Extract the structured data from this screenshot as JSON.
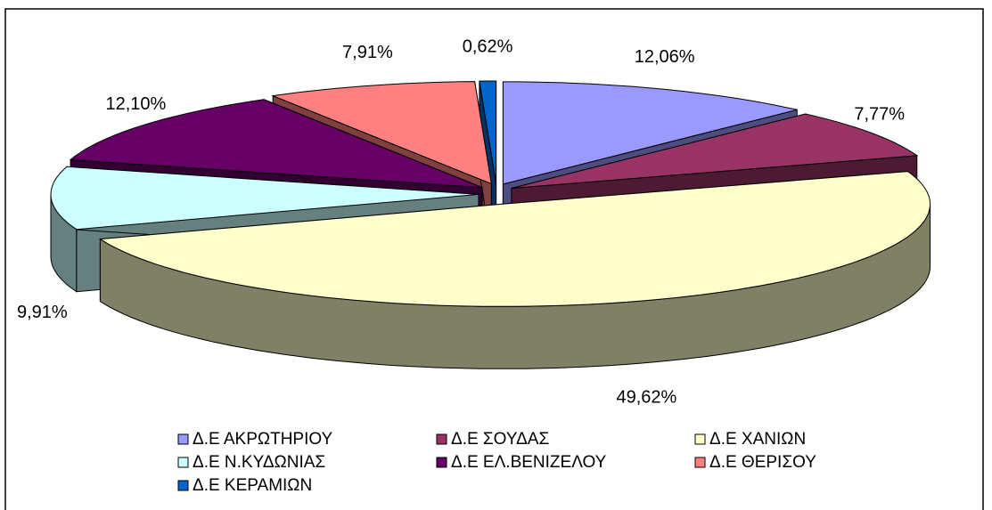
{
  "chart_data": {
    "type": "pie",
    "categories": [
      "Δ.Ε ΑΚΡΩΤΗΡΙΟΥ",
      "Δ.Ε ΣΟΥΔΑΣ",
      "Δ.Ε ΧΑΝΙΩΝ",
      "Δ.Ε Ν.ΚΥΔΩΝΙΑΣ",
      "Δ.Ε ΕΛ.ΒΕΝΙΖΕΛΟΥ",
      "Δ.Ε ΘΕΡΙΣΟΥ",
      "Δ.Ε ΚΕΡΑΜΙΩΝ"
    ],
    "values": [
      12.06,
      7.77,
      49.62,
      9.91,
      12.1,
      7.91,
      0.62
    ],
    "value_labels": [
      "12,06%",
      "7,77%",
      "49,62%",
      "9,91%",
      "12,10%",
      "7,91%",
      "0,62%"
    ],
    "colors": [
      "#9999ff",
      "#993366",
      "#ffffcc",
      "#ccffff",
      "#660066",
      "#ff8080",
      "#0066cc"
    ],
    "legend": "bottom"
  }
}
